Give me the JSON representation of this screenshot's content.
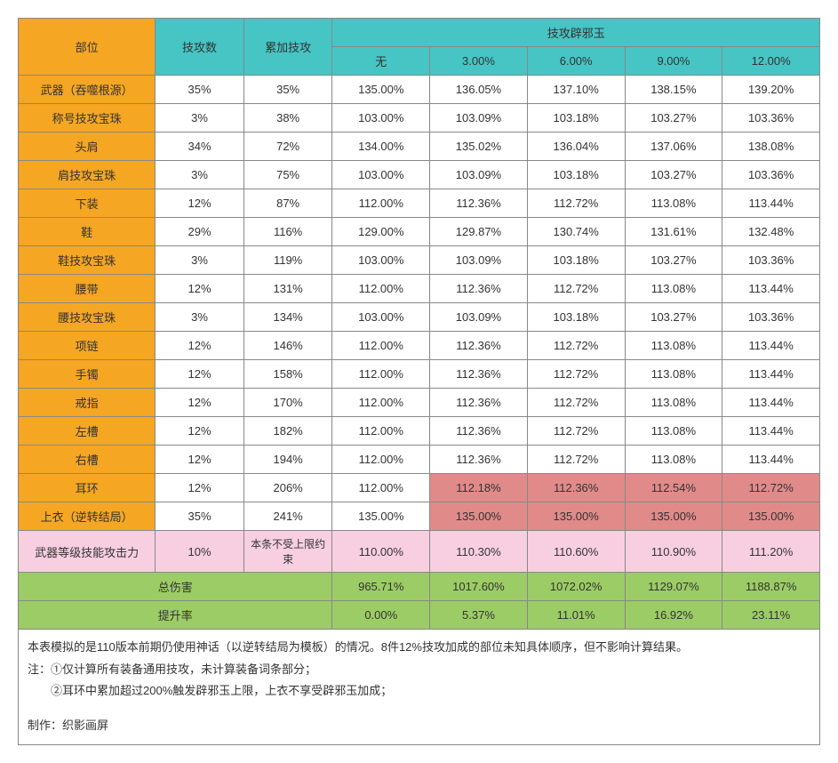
{
  "headers": {
    "part": "部位",
    "skillatk": "技攻数",
    "cumul": "累加技攻",
    "group": "技攻辟邪玉",
    "cols": [
      "无",
      "3.00%",
      "6.00%",
      "9.00%",
      "12.00%"
    ]
  },
  "rows": [
    {
      "name": "武器（吞噬根源）",
      "sa": "35%",
      "cu": "35%",
      "v": [
        "135.00%",
        "136.05%",
        "137.10%",
        "138.15%",
        "139.20%"
      ],
      "hl": [
        0,
        0,
        0,
        0,
        0
      ]
    },
    {
      "name": "称号技攻宝珠",
      "sa": "3%",
      "cu": "38%",
      "v": [
        "103.00%",
        "103.09%",
        "103.18%",
        "103.27%",
        "103.36%"
      ],
      "hl": [
        0,
        0,
        0,
        0,
        0
      ]
    },
    {
      "name": "头肩",
      "sa": "34%",
      "cu": "72%",
      "v": [
        "134.00%",
        "135.02%",
        "136.04%",
        "137.06%",
        "138.08%"
      ],
      "hl": [
        0,
        0,
        0,
        0,
        0
      ]
    },
    {
      "name": "肩技攻宝珠",
      "sa": "3%",
      "cu": "75%",
      "v": [
        "103.00%",
        "103.09%",
        "103.18%",
        "103.27%",
        "103.36%"
      ],
      "hl": [
        0,
        0,
        0,
        0,
        0
      ]
    },
    {
      "name": "下装",
      "sa": "12%",
      "cu": "87%",
      "v": [
        "112.00%",
        "112.36%",
        "112.72%",
        "113.08%",
        "113.44%"
      ],
      "hl": [
        0,
        0,
        0,
        0,
        0
      ]
    },
    {
      "name": "鞋",
      "sa": "29%",
      "cu": "116%",
      "v": [
        "129.00%",
        "129.87%",
        "130.74%",
        "131.61%",
        "132.48%"
      ],
      "hl": [
        0,
        0,
        0,
        0,
        0
      ]
    },
    {
      "name": "鞋技攻宝珠",
      "sa": "3%",
      "cu": "119%",
      "v": [
        "103.00%",
        "103.09%",
        "103.18%",
        "103.27%",
        "103.36%"
      ],
      "hl": [
        0,
        0,
        0,
        0,
        0
      ]
    },
    {
      "name": "腰带",
      "sa": "12%",
      "cu": "131%",
      "v": [
        "112.00%",
        "112.36%",
        "112.72%",
        "113.08%",
        "113.44%"
      ],
      "hl": [
        0,
        0,
        0,
        0,
        0
      ]
    },
    {
      "name": "腰技攻宝珠",
      "sa": "3%",
      "cu": "134%",
      "v": [
        "103.00%",
        "103.09%",
        "103.18%",
        "103.27%",
        "103.36%"
      ],
      "hl": [
        0,
        0,
        0,
        0,
        0
      ]
    },
    {
      "name": "项链",
      "sa": "12%",
      "cu": "146%",
      "v": [
        "112.00%",
        "112.36%",
        "112.72%",
        "113.08%",
        "113.44%"
      ],
      "hl": [
        0,
        0,
        0,
        0,
        0
      ]
    },
    {
      "name": "手镯",
      "sa": "12%",
      "cu": "158%",
      "v": [
        "112.00%",
        "112.36%",
        "112.72%",
        "113.08%",
        "113.44%"
      ],
      "hl": [
        0,
        0,
        0,
        0,
        0
      ]
    },
    {
      "name": "戒指",
      "sa": "12%",
      "cu": "170%",
      "v": [
        "112.00%",
        "112.36%",
        "112.72%",
        "113.08%",
        "113.44%"
      ],
      "hl": [
        0,
        0,
        0,
        0,
        0
      ]
    },
    {
      "name": "左槽",
      "sa": "12%",
      "cu": "182%",
      "v": [
        "112.00%",
        "112.36%",
        "112.72%",
        "113.08%",
        "113.44%"
      ],
      "hl": [
        0,
        0,
        0,
        0,
        0
      ]
    },
    {
      "name": "右槽",
      "sa": "12%",
      "cu": "194%",
      "v": [
        "112.00%",
        "112.36%",
        "112.72%",
        "113.08%",
        "113.44%"
      ],
      "hl": [
        0,
        0,
        0,
        0,
        0
      ]
    },
    {
      "name": "耳环",
      "sa": "12%",
      "cu": "206%",
      "v": [
        "112.00%",
        "112.18%",
        "112.36%",
        "112.54%",
        "112.72%"
      ],
      "hl": [
        0,
        1,
        1,
        1,
        1
      ]
    },
    {
      "name": "上衣（逆转结局）",
      "sa": "35%",
      "cu": "241%",
      "v": [
        "135.00%",
        "135.00%",
        "135.00%",
        "135.00%",
        "135.00%"
      ],
      "hl": [
        0,
        1,
        1,
        1,
        1
      ]
    }
  ],
  "pinkrow": {
    "name": "武器等级技能攻击力",
    "sa": "10%",
    "cu": "本条不受上限约束",
    "v": [
      "110.00%",
      "110.30%",
      "110.60%",
      "110.90%",
      "111.20%"
    ]
  },
  "summary": {
    "total_label": "总伤害",
    "total": [
      "965.71%",
      "1017.60%",
      "1072.02%",
      "1129.07%",
      "1188.87%"
    ],
    "rate_label": "提升率",
    "rate": [
      "0.00%",
      "5.37%",
      "11.01%",
      "16.92%",
      "23.11%"
    ]
  },
  "notes": {
    "l1": "本表模拟的是110版本前期仍使用神话（以逆转结局为模板）的情况。8件12%技攻加成的部位未知具体顺序，但不影响计算结果。",
    "l2": "注：①仅计算所有装备通用技攻，未计算装备词条部分；",
    "l3": "　　②耳环中累加超过200%触发辟邪玉上限，上衣不享受辟邪玉加成；",
    "l4": "制作：织影画屏"
  },
  "style": {
    "colwidths": [
      "155",
      "100",
      "100",
      "110",
      "110",
      "110",
      "110",
      "110"
    ],
    "colors": {
      "orange": "#f5a623",
      "teal": "#47c4c4",
      "pink": "#f7cfe0",
      "hlred": "#e18a8a",
      "green": "#9ccc65",
      "border": "#888888",
      "text": "#333333",
      "bg": "#ffffff"
    },
    "font_size_pt": 10
  }
}
